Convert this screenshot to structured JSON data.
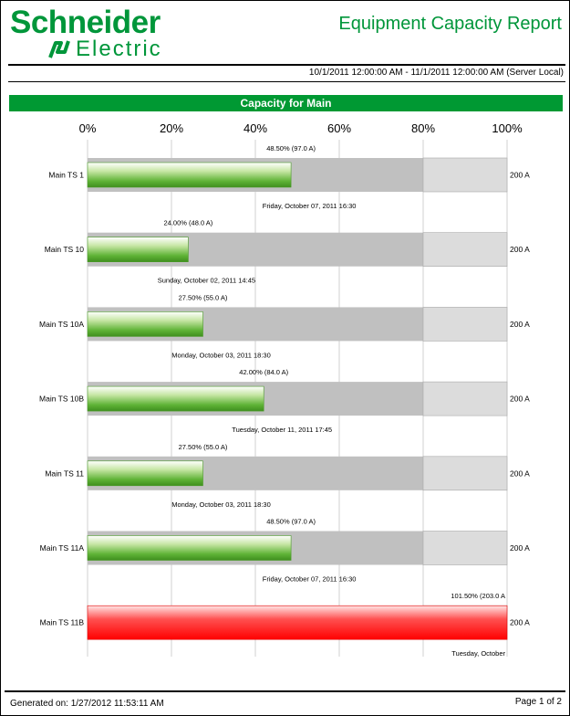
{
  "header": {
    "logo_line1": "Schneider",
    "logo_line2": "Electric",
    "report_title": "Equipment Capacity Report",
    "date_range": "10/1/2011 12:00:00 AM - 11/1/2011 12:00:00 AM (Server Local)"
  },
  "section": {
    "title": "Capacity for Main"
  },
  "chart_data": {
    "type": "bar",
    "orientation": "horizontal",
    "axis": {
      "ticks": [
        "0%",
        "20%",
        "40%",
        "60%",
        "80%",
        "100%"
      ],
      "range": [
        0,
        100
      ],
      "threshold": 80
    },
    "colors": {
      "normal": "#5fb336",
      "over": "#ff1a1a",
      "used_band": "#c0c0c0",
      "spare_band": "#dcdcdc"
    },
    "rows": [
      {
        "category": "Main TS 1",
        "value": 48.5,
        "label": "48.50% (97.0 A)",
        "rating": "200 A",
        "timestamp": "Friday, October 07, 2011 16:30"
      },
      {
        "category": "Main TS 10",
        "value": 24.0,
        "label": "24.00% (48.0 A)",
        "rating": "200 A",
        "timestamp": "Sunday, October 02, 2011 14:45"
      },
      {
        "category": "Main TS 10A",
        "value": 27.5,
        "label": "27.50% (55.0 A)",
        "rating": "200 A",
        "timestamp": "Monday, October 03, 2011 18:30"
      },
      {
        "category": "Main TS 10B",
        "value": 42.0,
        "label": "42.00% (84.0 A)",
        "rating": "200 A",
        "timestamp": "Tuesday, October 11, 2011 17:45"
      },
      {
        "category": "Main TS 11",
        "value": 27.5,
        "label": "27.50% (55.0 A)",
        "rating": "200 A",
        "timestamp": "Monday, October 03, 2011 18:30"
      },
      {
        "category": "Main TS 11A",
        "value": 48.5,
        "label": "48.50% (97.0 A)",
        "rating": "200 A",
        "timestamp": "Friday, October 07, 2011 16:30"
      },
      {
        "category": "Main TS 11B",
        "value": 101.5,
        "label": "101.50% (203.0 A",
        "rating": "200 A",
        "timestamp": "Tuesday, October"
      }
    ]
  },
  "footer": {
    "generated": "Generated on: 1/27/2012 11:53:11 AM",
    "page": "Page 1 of 2"
  }
}
